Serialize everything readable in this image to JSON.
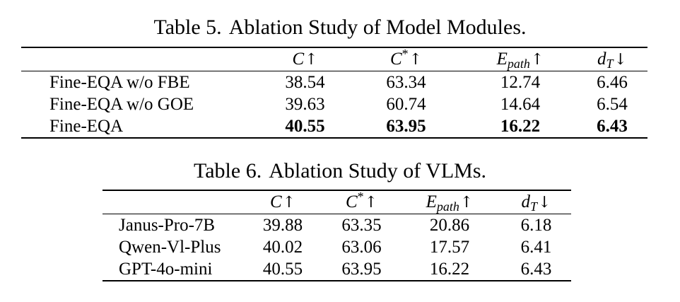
{
  "table5": {
    "caption_number": "Table 5.",
    "caption_text": "Ablation Study of Model Modules.",
    "headers": {
      "c_symbol": "C",
      "c_arrow": "↑",
      "cstar_symbol": "C",
      "cstar_sup": "*",
      "cstar_arrow": "↑",
      "epath_symbol": "E",
      "epath_sub": "path",
      "epath_arrow": "↑",
      "dt_symbol": "d",
      "dt_sub": "T",
      "dt_arrow": "↓"
    },
    "rows": [
      {
        "name": "Fine-EQA w/o FBE",
        "c": "38.54",
        "cstar": "63.34",
        "epath": "12.74",
        "dt": "6.46"
      },
      {
        "name": "Fine-EQA w/o GOE",
        "c": "39.63",
        "cstar": "60.74",
        "epath": "14.64",
        "dt": "6.54"
      },
      {
        "name": "Fine-EQA",
        "c": "40.55",
        "cstar": "63.95",
        "epath": "16.22",
        "dt": "6.43"
      }
    ]
  },
  "table6": {
    "caption_number": "Table 6.",
    "caption_text": "Ablation Study of VLMs.",
    "headers": {
      "c_symbol": "C",
      "c_arrow": "↑",
      "cstar_symbol": "C",
      "cstar_sup": "*",
      "cstar_arrow": "↑",
      "epath_symbol": "E",
      "epath_sub": "path",
      "epath_arrow": "↑",
      "dt_symbol": "d",
      "dt_sub": "T",
      "dt_arrow": "↓"
    },
    "rows": [
      {
        "name": "Janus-Pro-7B",
        "c": "39.88",
        "cstar": "63.35",
        "epath": "20.86",
        "dt": "6.18"
      },
      {
        "name": "Qwen-Vl-Plus",
        "c": "40.02",
        "cstar": "63.06",
        "epath": "17.57",
        "dt": "6.41"
      },
      {
        "name": "GPT-4o-mini",
        "c": "40.55",
        "cstar": "63.95",
        "epath": "16.22",
        "dt": "6.43"
      }
    ]
  }
}
